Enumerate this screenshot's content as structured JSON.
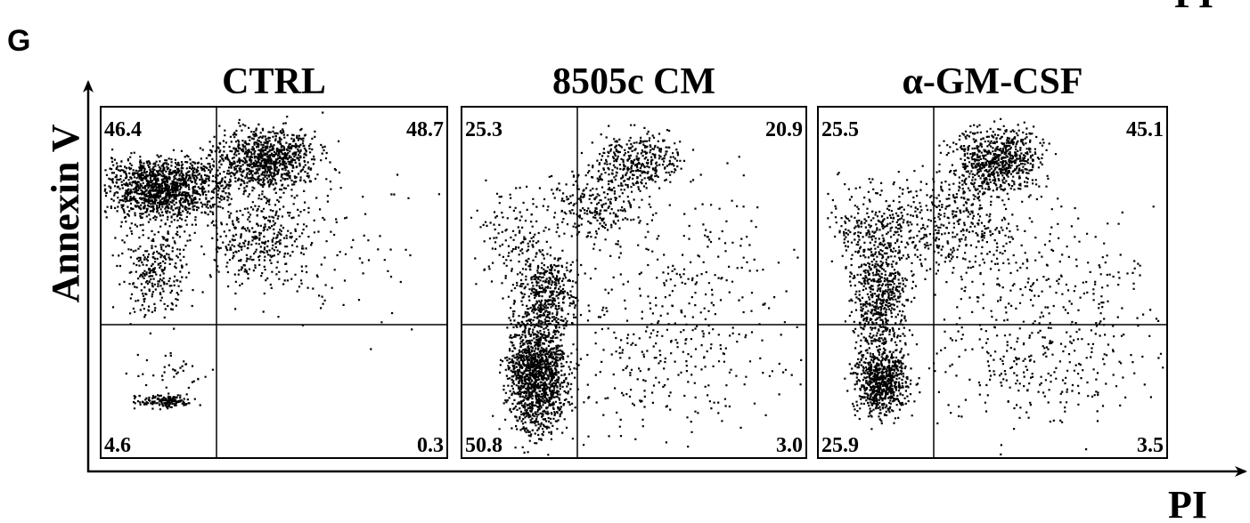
{
  "panel_label": "G",
  "corner_label": "PI",
  "y_axis_label": "Annexin V",
  "x_axis_label": "PI",
  "panels": [
    {
      "title": "CTRL",
      "quadrants": {
        "upper_left": "46.4",
        "upper_right": "48.7",
        "lower_left": "4.6",
        "lower_right": "0.3"
      }
    },
    {
      "title": "8505c  CM",
      "quadrants": {
        "upper_left": "25.3",
        "upper_right": "20.9",
        "lower_left": "50.8",
        "lower_right": "3.0"
      }
    },
    {
      "title": "α-GM-CSF",
      "quadrants": {
        "upper_left": "25.5",
        "upper_right": "45.1",
        "lower_left": "25.9",
        "lower_right": "3.5"
      }
    }
  ]
}
